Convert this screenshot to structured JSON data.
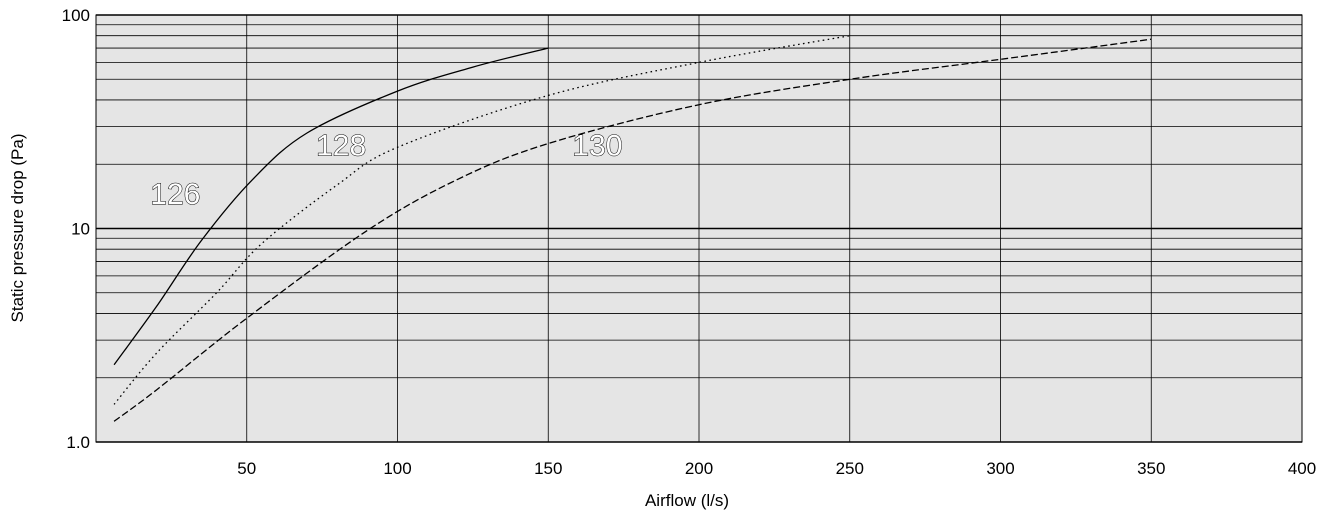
{
  "chart_data": {
    "type": "line",
    "title": "",
    "xlabel": "Airflow (l/s)",
    "ylabel": "Static pressure drop (Pa)",
    "xlim": [
      0,
      400
    ],
    "ylim": [
      1,
      100
    ],
    "yscale": "log",
    "grid": true,
    "background_color": "#e5e5e5",
    "line_color": "#000000",
    "x_ticks": [
      50,
      100,
      150,
      200,
      250,
      300,
      350,
      400
    ],
    "x_tick_labels": [
      "50",
      "100",
      "150",
      "200",
      "250",
      "300",
      "350",
      "400"
    ],
    "y_ticks": [
      1,
      10,
      100
    ],
    "y_tick_labels": [
      "1.0",
      "10",
      "100"
    ],
    "series": [
      {
        "name": "126",
        "style": "solid",
        "label_at": [
          18,
          13
        ],
        "points": [
          [
            6,
            2.3
          ],
          [
            20,
            4.3
          ],
          [
            35,
            8.8
          ],
          [
            52,
            17
          ],
          [
            70,
            28
          ],
          [
            100,
            44
          ],
          [
            125,
            57
          ],
          [
            150,
            70
          ]
        ]
      },
      {
        "name": "128",
        "style": "dotted",
        "label_at": [
          73,
          22
        ],
        "points": [
          [
            6,
            1.5
          ],
          [
            20,
            2.6
          ],
          [
            40,
            5.0
          ],
          [
            55,
            8.5
          ],
          [
            80,
            16
          ],
          [
            100,
            24
          ],
          [
            150,
            42
          ],
          [
            200,
            60
          ],
          [
            250,
            80
          ]
        ]
      },
      {
        "name": "130",
        "style": "dashed",
        "label_at": [
          158,
          22
        ],
        "points": [
          [
            6,
            1.25
          ],
          [
            20,
            1.75
          ],
          [
            50,
            3.8
          ],
          [
            90,
            9.8
          ],
          [
            120,
            17
          ],
          [
            150,
            25
          ],
          [
            200,
            38
          ],
          [
            250,
            50
          ],
          [
            300,
            62
          ],
          [
            350,
            77
          ]
        ]
      }
    ]
  }
}
